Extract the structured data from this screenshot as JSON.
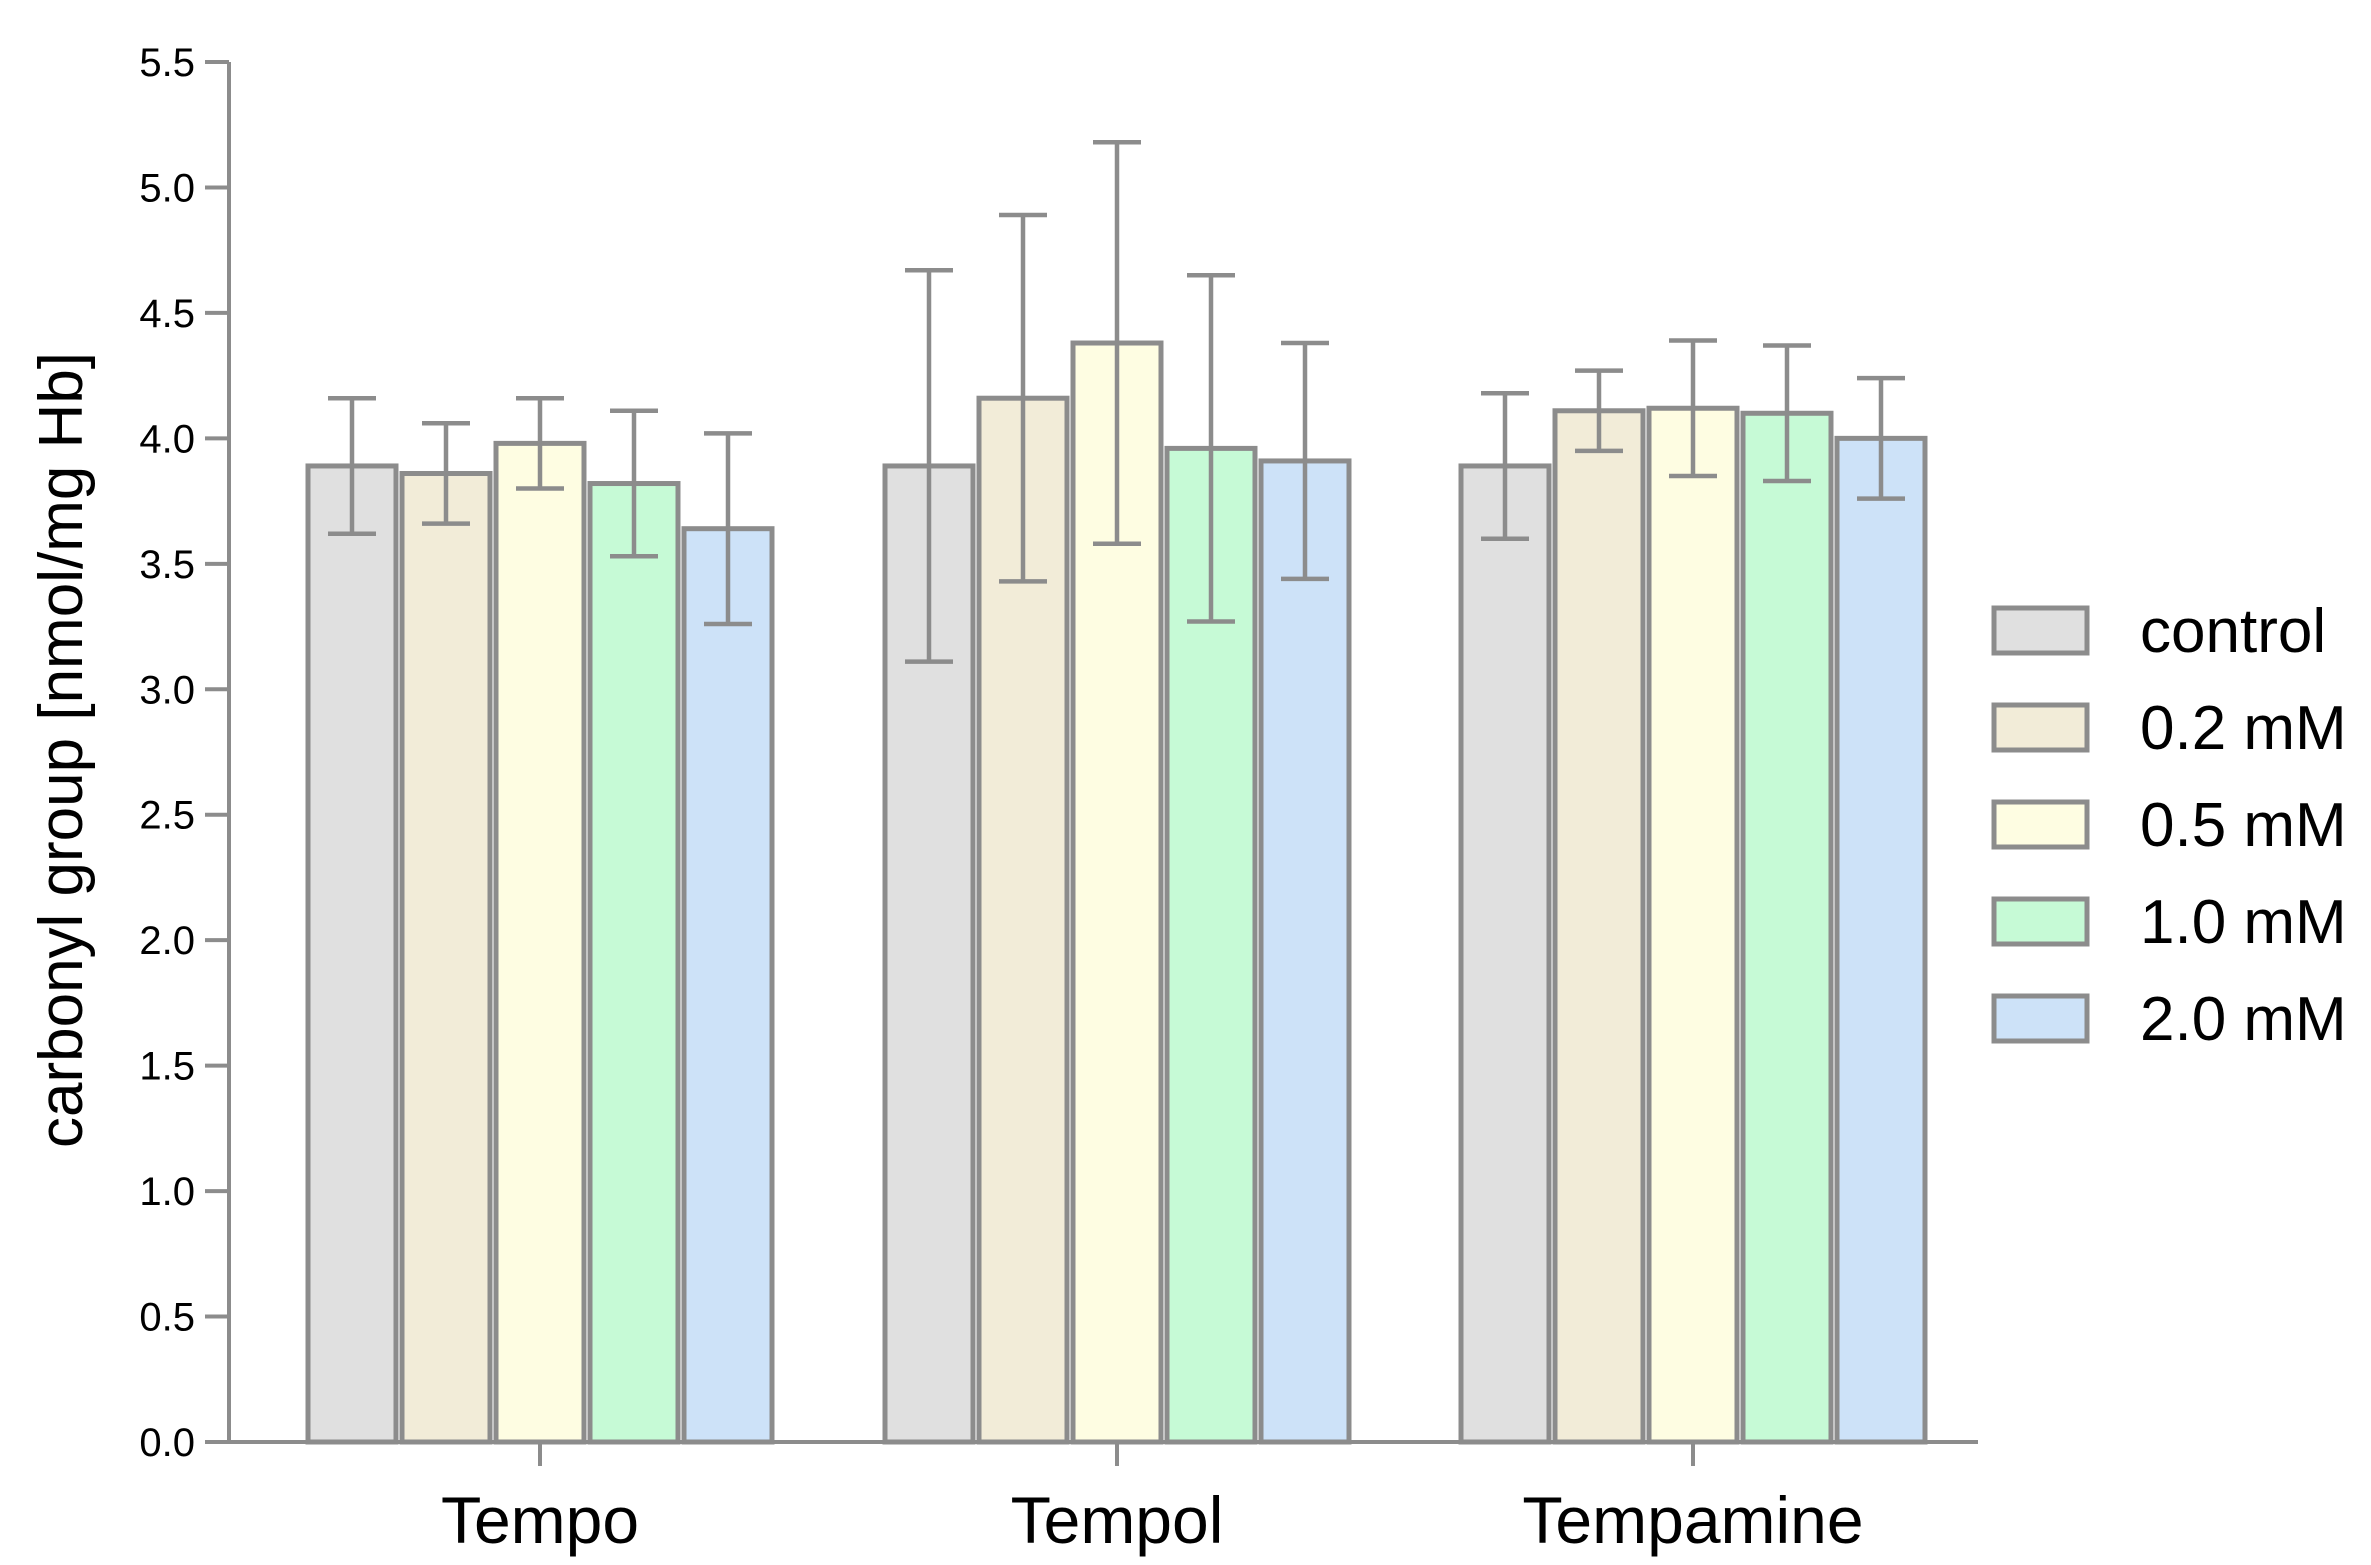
{
  "chart_data": {
    "type": "bar",
    "title": "",
    "xlabel": "",
    "ylabel": "carbonyl group [nmol/mg Hb]",
    "ylim": [
      0.0,
      5.5
    ],
    "yticks": [
      "0.0",
      "0.5",
      "1.0",
      "1.5",
      "2.0",
      "2.5",
      "3.0",
      "3.5",
      "4.0",
      "4.5",
      "5.0",
      "5.5"
    ],
    "categories": [
      "Tempo",
      "Tempol",
      "Tempamine"
    ],
    "series": [
      {
        "name": "control",
        "color": "#e0e0e0",
        "values": [
          3.89,
          3.89,
          3.89
        ],
        "errors": [
          0.27,
          0.78,
          0.29
        ]
      },
      {
        "name": "0.2 mM",
        "color": "#f2ecd8",
        "values": [
          3.86,
          4.16,
          4.11
        ],
        "errors": [
          0.2,
          0.73,
          0.16
        ]
      },
      {
        "name": "0.5 mM",
        "color": "#fefde2",
        "values": [
          3.98,
          4.38,
          4.12
        ],
        "errors": [
          0.18,
          0.8,
          0.27
        ]
      },
      {
        "name": "1.0 mM",
        "color": "#c6fad6",
        "values": [
          3.82,
          3.96,
          4.1
        ],
        "errors": [
          0.29,
          0.69,
          0.27
        ]
      },
      {
        "name": "2.0 mM",
        "color": "#cde2f8",
        "values": [
          3.64,
          3.91,
          4.0
        ],
        "errors": [
          0.38,
          0.47,
          0.24
        ]
      }
    ],
    "legend_position": "right",
    "grid": false
  }
}
